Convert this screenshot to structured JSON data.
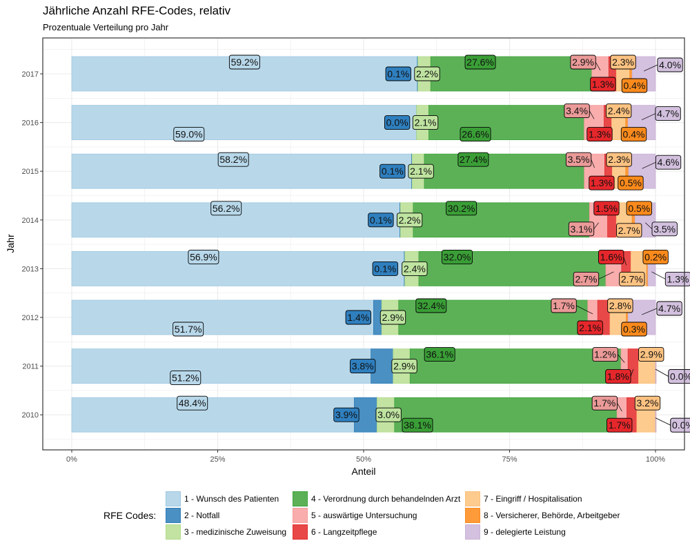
{
  "chart_data": {
    "type": "bar",
    "orientation": "horizontal",
    "stacked": true,
    "title": "Jährliche Anzahl RFE-Codes, relativ",
    "subtitle": "Prozentuale Verteilung pro Jahr",
    "xlabel": "Anteil",
    "ylabel": "Jahr",
    "xlim": [
      0,
      100
    ],
    "x_ticks": [
      "0%",
      "25%",
      "50%",
      "75%",
      "100%"
    ],
    "grid": true,
    "legend_title": "RFE Codes:",
    "legend_position": "bottom",
    "categories": [
      "2017",
      "2016",
      "2015",
      "2014",
      "2013",
      "2012",
      "2011",
      "2010"
    ],
    "series": [
      {
        "name": "1 - Wunsch des Patienten",
        "color": "#b8d8ea",
        "border": "#9ec7e0",
        "label_fill": "#b8d8ea",
        "values": [
          59.2,
          59.0,
          58.2,
          56.2,
          56.9,
          51.7,
          51.2,
          48.4
        ]
      },
      {
        "name": "2 - Notfall",
        "color": "#4a90c2",
        "border": "#2f7cb8",
        "label_fill": "#2f7fbe",
        "values": [
          0.1,
          0.0,
          0.1,
          0.1,
          0.1,
          1.4,
          3.8,
          3.9
        ]
      },
      {
        "name": "3 - medizinische Zuweisung",
        "color": "#c2e3a2",
        "border": "#b2db8c",
        "label_fill": "#bfe3a0",
        "values": [
          2.2,
          2.1,
          2.1,
          2.2,
          2.4,
          2.9,
          2.9,
          3.0
        ]
      },
      {
        "name": "4 - Verordnung durch behandelnden Arzt",
        "color": "#5cb157",
        "border": "#3ea33a",
        "label_fill": "#3a9e36",
        "values": [
          27.6,
          26.6,
          27.4,
          30.2,
          32.0,
          32.4,
          36.1,
          38.1
        ]
      },
      {
        "name": "5 - auswärtige Untersuchung",
        "color": "#f9adad",
        "border": "#f59c9c",
        "label_fill": "#ea9a98",
        "values": [
          2.9,
          3.4,
          3.5,
          3.1,
          2.7,
          1.7,
          1.2,
          1.7
        ]
      },
      {
        "name": "6 - Langzeitpflege",
        "color": "#e94848",
        "border": "#e12f2f",
        "label_fill": "#e5272b",
        "values": [
          1.3,
          1.3,
          1.3,
          1.5,
          1.6,
          2.1,
          1.8,
          1.7
        ]
      },
      {
        "name": "7 - Eingriff / Hospitalisation",
        "color": "#fdcb8e",
        "border": "#fcc07b",
        "label_fill": "#fcc281",
        "values": [
          2.3,
          2.4,
          2.3,
          2.7,
          2.7,
          2.8,
          2.9,
          3.2
        ]
      },
      {
        "name": "8 - Versicherer, Behörde, Arbeitgeber",
        "color": "#fd9a3a",
        "border": "#fb8a1f",
        "label_fill": "#fb8a1c",
        "values": [
          0.4,
          0.4,
          0.5,
          0.5,
          0.2,
          0.3,
          0.0,
          0.0
        ]
      },
      {
        "name": "9 - delegierte Leistung",
        "color": "#d4c0df",
        "border": "#c9b3d7",
        "label_fill": "#d2c0de",
        "values": [
          4.0,
          4.7,
          4.6,
          3.5,
          1.3,
          4.7,
          0.0,
          0.0
        ]
      }
    ]
  }
}
